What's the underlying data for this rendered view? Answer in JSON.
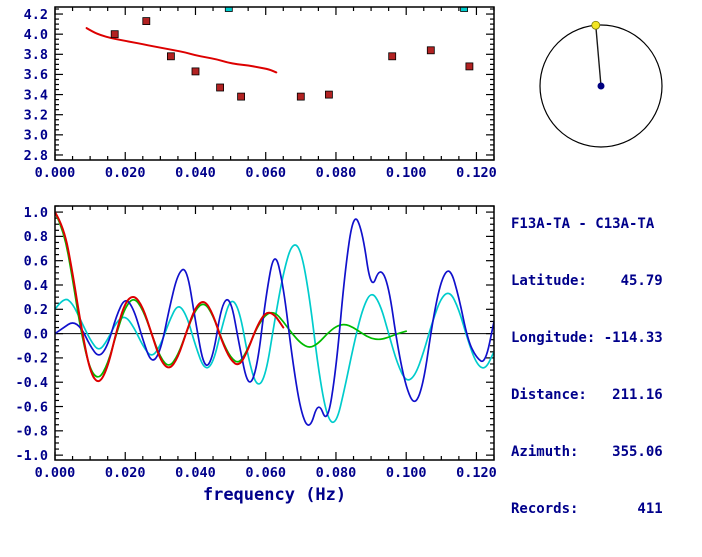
{
  "info": {
    "station_pair": "F13A-TA - C13A-TA",
    "lines": [
      "Latitude:    45.79",
      "Longitude: -114.33",
      "Distance:   211.16",
      "Azimuth:    355.06",
      "Records:       411"
    ]
  },
  "compass": {
    "azimuth_deg": 355.06,
    "edge_dot_color": "#f2e522",
    "center_dot_color": "#000080",
    "line_color": "#1a1a1a"
  },
  "palette": {
    "frame": "#000000",
    "tick_text": "#00008b",
    "red": "#dd0000",
    "dark_red": "#b22222",
    "blue": "#1111cc",
    "cyan": "#00cccc",
    "green": "#00bb00"
  },
  "chart_data": [
    {
      "id": "dispersion",
      "type": "scatter",
      "title": "",
      "xlabel": "",
      "ylabel": "",
      "xlim": [
        0,
        0.125
      ],
      "ylim": [
        2.75,
        4.27
      ],
      "xticks": [
        0,
        0.02,
        0.04,
        0.06,
        0.08,
        0.1,
        0.12
      ],
      "xtick_labels": [
        "0.000",
        "0.020",
        "0.040",
        "0.060",
        "0.080",
        "0.100",
        "0.120"
      ],
      "xminor": 0.005,
      "yticks": [
        2.8,
        3.0,
        3.2,
        3.4,
        3.6,
        3.8,
        4.0,
        4.2
      ],
      "ytick_labels": [
        "2.8",
        "3.0",
        "3.2",
        "3.4",
        "3.6",
        "3.8",
        "4.0",
        "4.2"
      ],
      "yminor": 0.05,
      "series": [
        {
          "name": "reference-dispersion-curve",
          "type": "line",
          "color_key": "red",
          "width": 2,
          "points": [
            [
              0.009,
              4.06
            ],
            [
              0.011,
              4.02
            ],
            [
              0.013,
              3.99
            ],
            [
              0.016,
              3.96
            ],
            [
              0.019,
              3.94
            ],
            [
              0.022,
              3.92
            ],
            [
              0.025,
              3.9
            ],
            [
              0.028,
              3.88
            ],
            [
              0.031,
              3.86
            ],
            [
              0.034,
              3.84
            ],
            [
              0.037,
              3.82
            ],
            [
              0.04,
              3.79
            ],
            [
              0.043,
              3.77
            ],
            [
              0.046,
              3.75
            ],
            [
              0.049,
              3.72
            ],
            [
              0.052,
              3.7
            ],
            [
              0.055,
              3.69
            ],
            [
              0.058,
              3.67
            ],
            [
              0.061,
              3.65
            ],
            [
              0.063,
              3.62
            ]
          ]
        },
        {
          "name": "velocity-measurements",
          "type": "scatter",
          "marker": "square",
          "color_key": "dark_red",
          "points": [
            [
              0.017,
              4.0
            ],
            [
              0.026,
              4.13
            ],
            [
              0.033,
              3.78
            ],
            [
              0.04,
              3.63
            ],
            [
              0.047,
              3.47
            ],
            [
              0.053,
              3.38
            ],
            [
              0.07,
              3.38
            ],
            [
              0.078,
              3.4
            ],
            [
              0.096,
              3.78
            ],
            [
              0.107,
              3.84
            ],
            [
              0.118,
              3.68
            ]
          ]
        },
        {
          "name": "flagged-measurements",
          "type": "scatter",
          "marker": "square",
          "color_key": "cyan",
          "points": [
            [
              0.0495,
              4.26
            ],
            [
              0.1165,
              4.26
            ]
          ]
        }
      ]
    },
    {
      "id": "waveforms",
      "type": "line",
      "title": "",
      "xlabel": "frequency (Hz)",
      "ylabel": "",
      "xlim": [
        0,
        0.125
      ],
      "ylim": [
        -1.04,
        1.05
      ],
      "xticks": [
        0,
        0.02,
        0.04,
        0.06,
        0.08,
        0.1,
        0.12
      ],
      "xtick_labels": [
        "0.000",
        "0.020",
        "0.040",
        "0.060",
        "0.080",
        "0.100",
        "0.120"
      ],
      "xminor": 0.005,
      "yticks": [
        -1.0,
        -0.8,
        -0.6,
        -0.4,
        -0.2,
        0.0,
        0.2,
        0.4,
        0.6,
        0.8,
        1.0
      ],
      "ytick_labels": [
        "-1.0",
        "-0.8",
        "-0.6",
        "-0.4",
        "-0.2",
        "0.0",
        "0.2",
        "0.4",
        "0.6",
        "0.8",
        "1.0"
      ],
      "yminor": 0.05,
      "zeroline": true,
      "series": [
        {
          "name": "waveform-cyan",
          "type": "line",
          "color_key": "cyan",
          "width": 1.7,
          "x0": 0,
          "dx": 0.0025,
          "values": [
            0.2,
            0.3,
            0.25,
            0.1,
            -0.05,
            -0.15,
            -0.05,
            0.1,
            0.15,
            0.05,
            -0.1,
            -0.2,
            -0.1,
            0.1,
            0.25,
            0.15,
            -0.1,
            -0.3,
            -0.25,
            0.05,
            0.3,
            0.2,
            -0.2,
            -0.45,
            -0.35,
            0.1,
            0.5,
            0.75,
            0.7,
            0.3,
            -0.3,
            -0.7,
            -0.75,
            -0.45,
            -0.1,
            0.2,
            0.35,
            0.25,
            0.0,
            -0.25,
            -0.4,
            -0.35,
            -0.15,
            0.1,
            0.3,
            0.35,
            0.2,
            -0.05,
            -0.25,
            -0.3,
            -0.15
          ]
        },
        {
          "name": "waveform-green",
          "type": "line",
          "color_key": "green",
          "width": 1.7,
          "x0": 0,
          "dx": 0.0025,
          "values": [
            1.0,
            0.85,
            0.45,
            0.0,
            -0.3,
            -0.38,
            -0.25,
            0.0,
            0.22,
            0.3,
            0.2,
            0.0,
            -0.2,
            -0.28,
            -0.18,
            0.02,
            0.2,
            0.26,
            0.15,
            -0.05,
            -0.2,
            -0.25,
            -0.12,
            0.05,
            0.16,
            0.18,
            0.1,
            0.0,
            -0.08,
            -0.12,
            -0.08,
            0.0,
            0.06,
            0.08,
            0.05,
            0.0,
            -0.04,
            -0.05,
            -0.03,
            0.0,
            0.02
          ]
        },
        {
          "name": "waveform-blue",
          "type": "line",
          "color_key": "blue",
          "width": 1.7,
          "x0": 0,
          "dx": 0.0025,
          "values": [
            0.0,
            0.05,
            0.1,
            0.05,
            -0.1,
            -0.2,
            -0.1,
            0.15,
            0.3,
            0.2,
            -0.05,
            -0.25,
            -0.15,
            0.2,
            0.5,
            0.55,
            0.1,
            -0.3,
            -0.2,
            0.25,
            0.3,
            -0.1,
            -0.45,
            -0.3,
            0.3,
            0.7,
            0.4,
            -0.2,
            -0.65,
            -0.8,
            -0.55,
            -0.75,
            -0.3,
            0.5,
            1.0,
            0.85,
            0.35,
            0.55,
            0.4,
            -0.1,
            -0.45,
            -0.6,
            -0.4,
            0.1,
            0.45,
            0.55,
            0.3,
            -0.05,
            -0.2,
            -0.25,
            0.1
          ]
        },
        {
          "name": "waveform-red-filtered",
          "type": "line",
          "color_key": "red",
          "width": 2,
          "x0": 0,
          "dx": 0.0025,
          "values": [
            1.0,
            0.88,
            0.5,
            0.05,
            -0.32,
            -0.42,
            -0.28,
            0.02,
            0.26,
            0.32,
            0.22,
            0.0,
            -0.22,
            -0.3,
            -0.2,
            0.02,
            0.22,
            0.28,
            0.16,
            -0.06,
            -0.22,
            -0.27,
            -0.13,
            0.06,
            0.18,
            0.16,
            0.05
          ]
        }
      ]
    }
  ]
}
